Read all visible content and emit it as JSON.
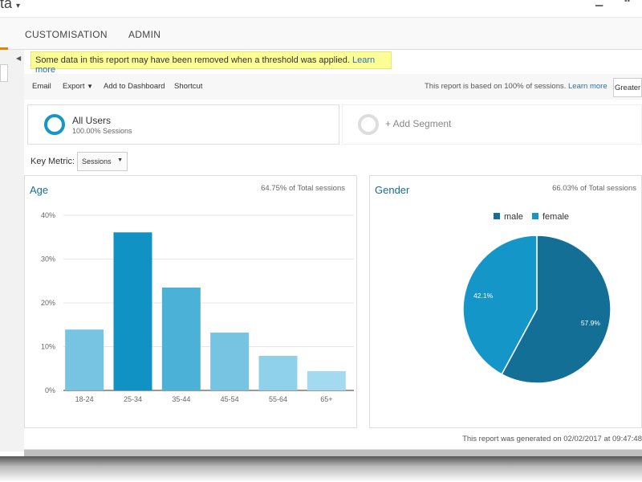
{
  "header": {
    "title_fragment": "ta"
  },
  "nav": {
    "tabs": [
      "CUSTOMISATION",
      "ADMIN"
    ]
  },
  "notice": {
    "text": "Some data in this report may have been removed when a threshold was applied.",
    "link": "Learn more"
  },
  "toolbar": {
    "email": "Email",
    "export": "Export",
    "add_dashboard": "Add to Dashboard",
    "shortcut": "Shortcut",
    "sampling_text": "This report is based on 100% of sessions.",
    "sampling_link": "Learn more",
    "precision": "Greater"
  },
  "segments": {
    "name": "All Users",
    "sub": "100.00% Sessions",
    "add": "+ Add Segment"
  },
  "key_metric": {
    "label": "Key Metric:",
    "value": "Sessions"
  },
  "footer": {
    "generated": "This report was generated on 02/02/2017 at 09:47:48"
  },
  "colors": {
    "accent": "#f57c00",
    "link": "#2a6ebb",
    "male": "#136f96",
    "female": "#1496c9"
  },
  "chart_data": [
    {
      "type": "bar",
      "title": "Age",
      "subtitle": "64.75% of Total sessions",
      "categories": [
        "18-24",
        "25-34",
        "35-44",
        "45-54",
        "55-64",
        "65+"
      ],
      "values": [
        13.9,
        36.1,
        23.5,
        13.2,
        7.9,
        4.4
      ],
      "yticks": [
        "0%",
        "10%",
        "20%",
        "30%",
        "40%"
      ],
      "ylim": [
        0,
        40
      ],
      "colors": [
        "#76c4e2",
        "#1192c5",
        "#4bb1d6",
        "#76c4e2",
        "#8fd0ea",
        "#a4daef"
      ]
    },
    {
      "type": "pie",
      "title": "Gender",
      "subtitle": "66.03% of Total sessions",
      "labels": [
        "male",
        "female"
      ],
      "values": [
        57.9,
        42.1
      ],
      "data_labels": [
        "57.9%",
        "42.1%"
      ],
      "legend": "top"
    }
  ]
}
